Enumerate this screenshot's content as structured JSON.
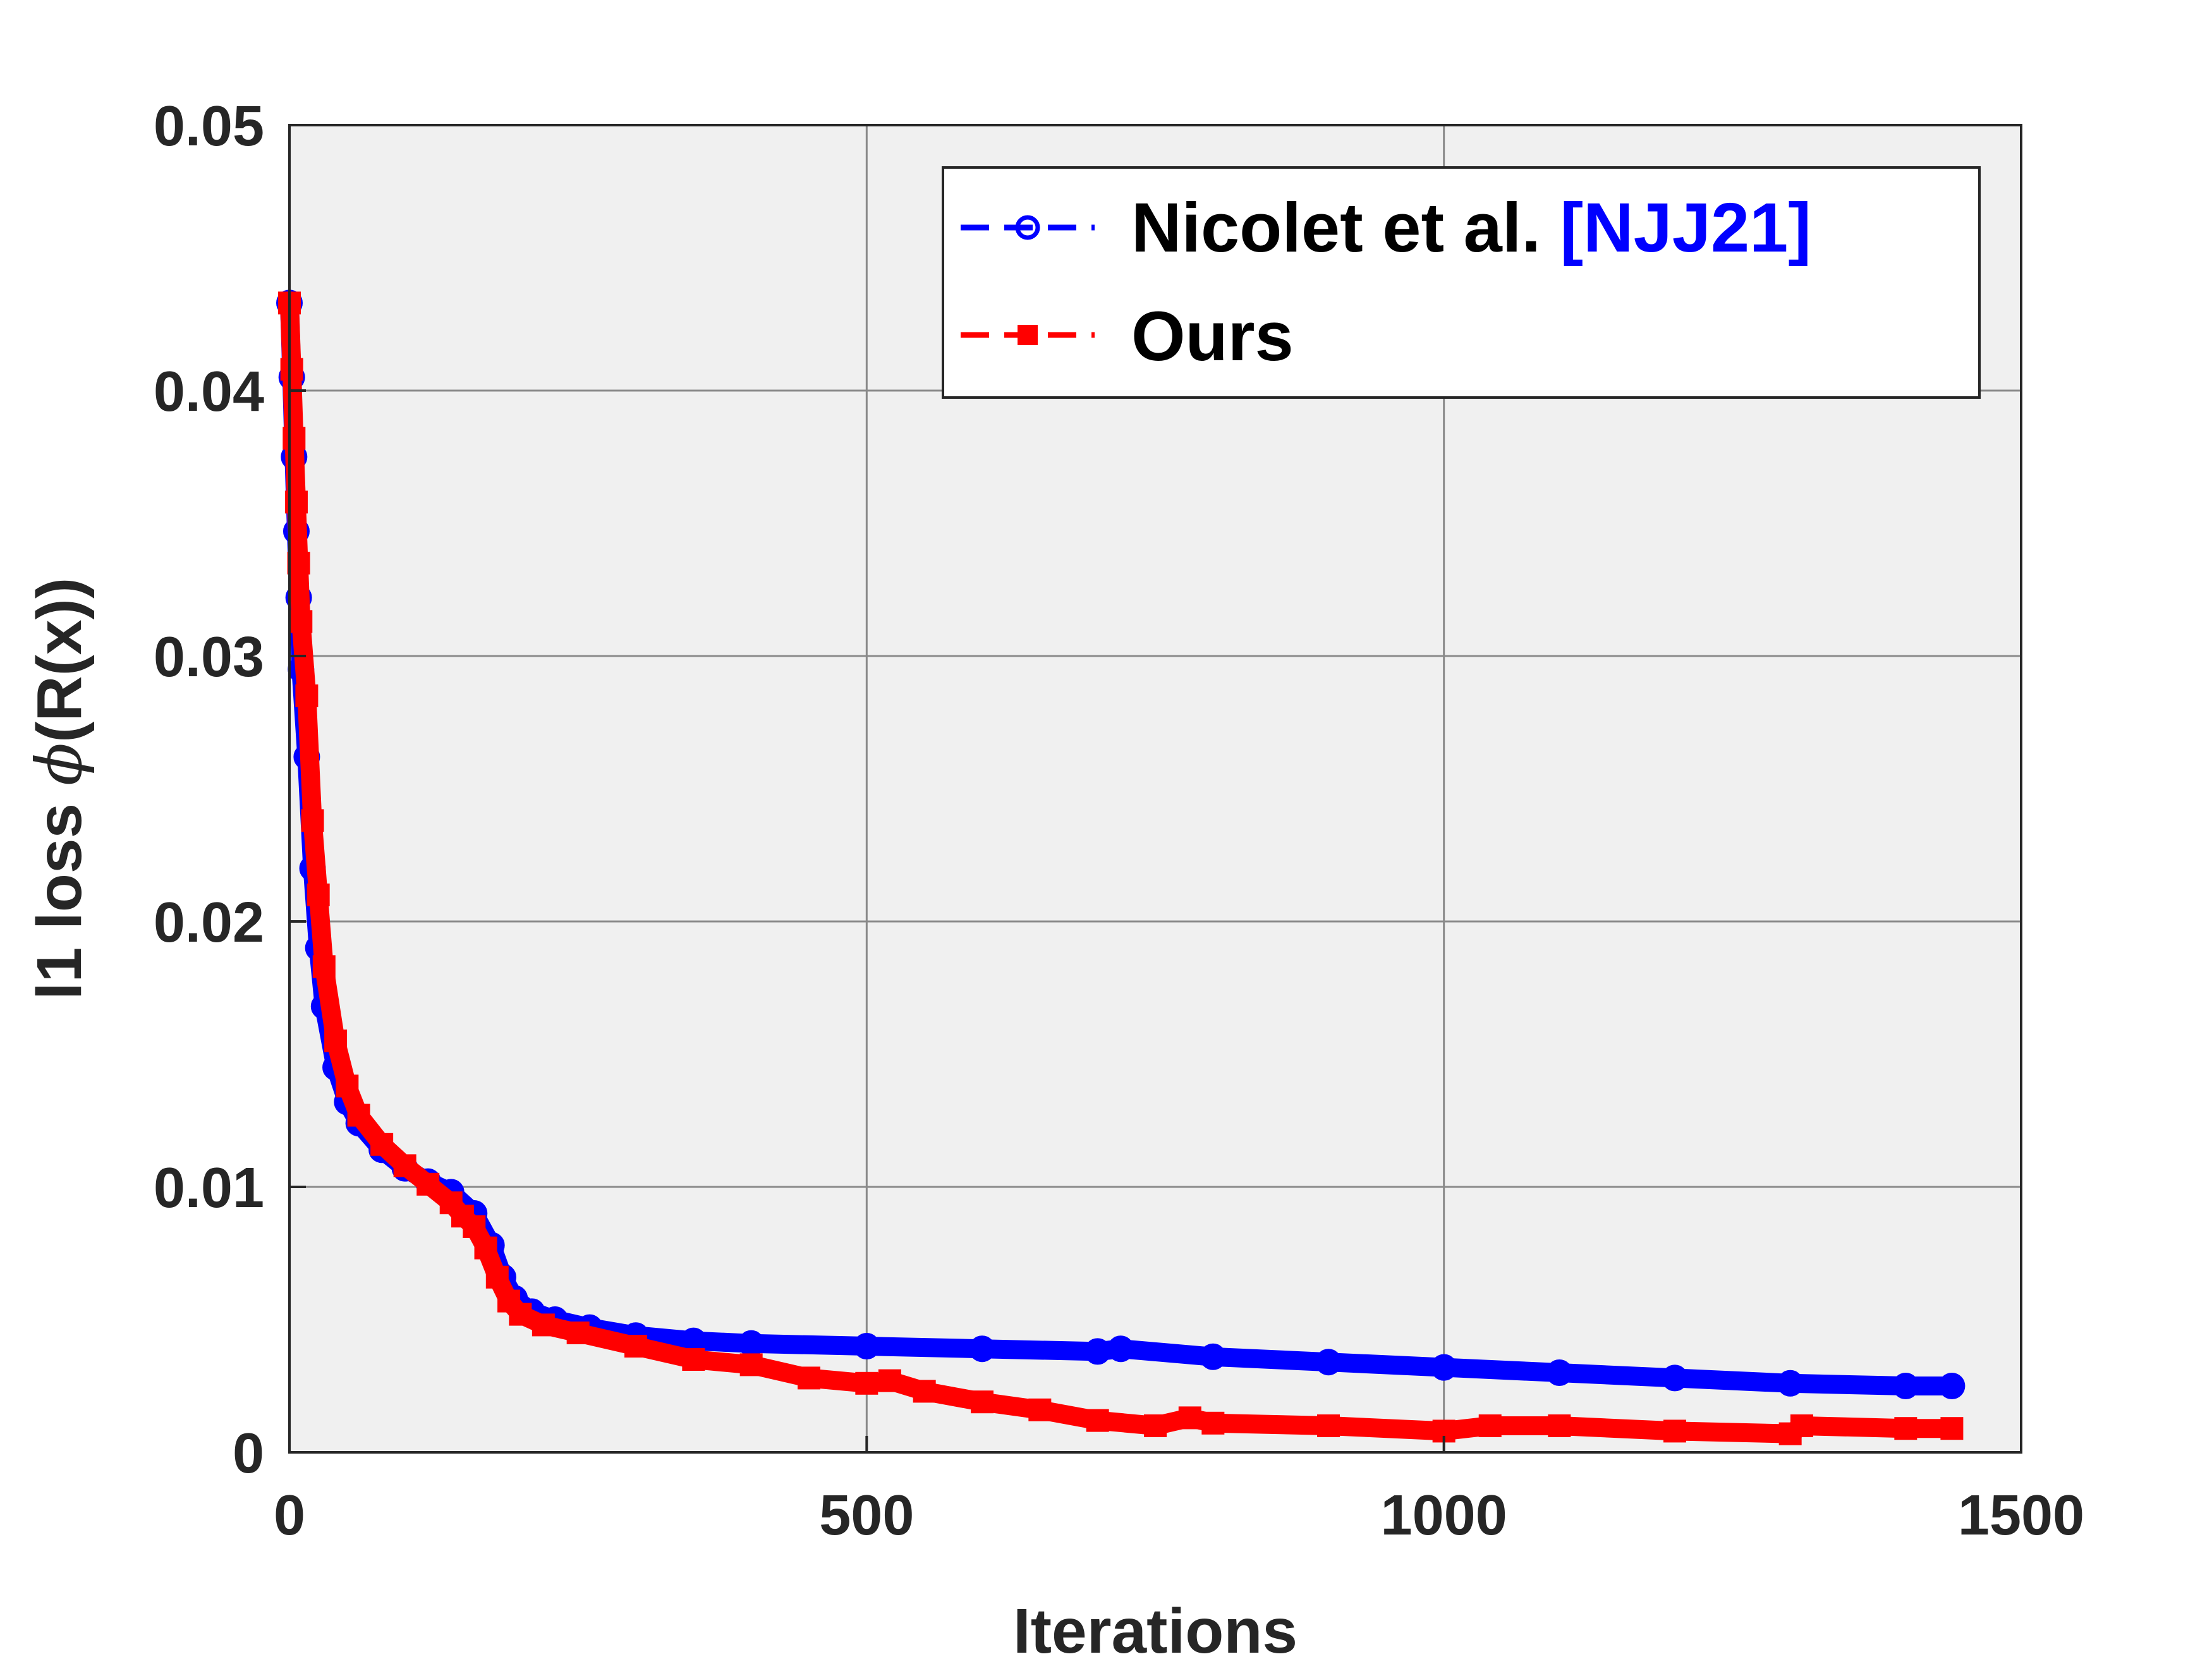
{
  "chart_data": {
    "type": "line",
    "xlabel": "Iterations",
    "ylabel_prefix": "l1 loss ",
    "ylabel_symbol": "ϕ",
    "ylabel_suffix": "(R(x))",
    "xlim": [
      0,
      1500
    ],
    "ylim": [
      0,
      0.05
    ],
    "x_ticks": [
      0,
      500,
      1000,
      1500
    ],
    "x_tick_labels": [
      "0",
      "500",
      "1000",
      "1500"
    ],
    "y_ticks": [
      0,
      0.01,
      0.02,
      0.03,
      0.04,
      0.05
    ],
    "y_tick_labels": [
      "0",
      "0.01",
      "0.02",
      "0.03",
      "0.04",
      "0.05"
    ],
    "grid": true,
    "legend_position": "top-right",
    "background": "#f0f0f0",
    "series": [
      {
        "name": "Nicolet et al. ",
        "name_citation": "[NJJ21]",
        "citation_color": "#0000ff",
        "color": "#0000ff",
        "marker": "circle",
        "line_style": "dashed",
        "x": [
          0,
          2,
          4,
          6,
          8,
          10,
          15,
          20,
          25,
          30,
          40,
          50,
          60,
          80,
          100,
          120,
          140,
          160,
          175,
          185,
          195,
          210,
          230,
          260,
          300,
          350,
          400,
          500,
          600,
          700,
          720,
          800,
          900,
          1000,
          1100,
          1200,
          1300,
          1400,
          1440
        ],
        "y": [
          0.0433,
          0.0405,
          0.0375,
          0.0347,
          0.0322,
          0.0295,
          0.0262,
          0.022,
          0.019,
          0.0168,
          0.0145,
          0.0132,
          0.0124,
          0.0114,
          0.0107,
          0.0102,
          0.0098,
          0.009,
          0.0078,
          0.0066,
          0.0058,
          0.0053,
          0.005,
          0.0047,
          0.0044,
          0.0042,
          0.0041,
          0.004,
          0.0039,
          0.0038,
          0.0039,
          0.0036,
          0.0034,
          0.0032,
          0.003,
          0.0028,
          0.0026,
          0.0025,
          0.0025
        ]
      },
      {
        "name": "Ours",
        "color": "#ff0000",
        "marker": "square",
        "line_style": "dashed",
        "x": [
          0,
          2,
          4,
          6,
          8,
          10,
          15,
          20,
          25,
          30,
          40,
          50,
          60,
          80,
          100,
          120,
          140,
          150,
          160,
          170,
          180,
          190,
          200,
          220,
          250,
          300,
          350,
          400,
          450,
          500,
          520,
          550,
          600,
          650,
          700,
          750,
          780,
          800,
          900,
          1000,
          1040,
          1100,
          1200,
          1300,
          1310,
          1400,
          1440
        ],
        "y": [
          0.0433,
          0.0408,
          0.0382,
          0.0358,
          0.0335,
          0.0313,
          0.0285,
          0.0238,
          0.021,
          0.0183,
          0.0155,
          0.0138,
          0.0127,
          0.0116,
          0.0108,
          0.0101,
          0.0094,
          0.0089,
          0.0085,
          0.0077,
          0.0066,
          0.0057,
          0.0052,
          0.0048,
          0.0045,
          0.004,
          0.0035,
          0.0033,
          0.0028,
          0.0026,
          0.0027,
          0.0023,
          0.0019,
          0.0016,
          0.0012,
          0.001,
          0.0013,
          0.0011,
          0.001,
          0.0008,
          0.001,
          0.001,
          0.0008,
          0.0007,
          0.001,
          0.0009,
          0.0009
        ]
      }
    ]
  }
}
